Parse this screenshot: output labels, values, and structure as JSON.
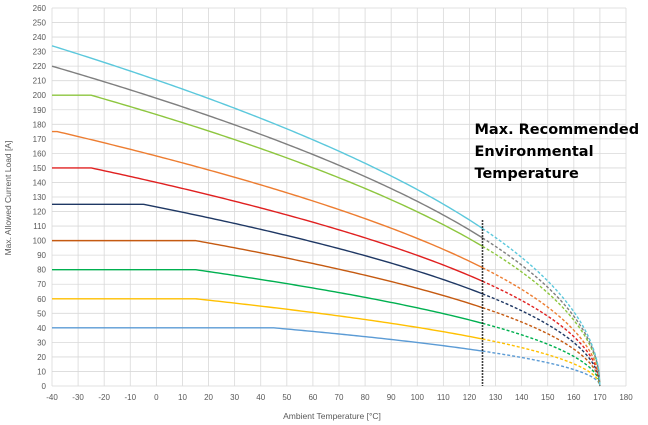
{
  "chart_data": {
    "type": "line",
    "title": "",
    "xlabel": "Ambient Temperature [°C]",
    "ylabel": "Max. Allowed Current Load [A]",
    "xlim": [
      -40,
      180
    ],
    "ylim": [
      0,
      260
    ],
    "x_ticks": [
      "-40",
      "-30",
      "-20",
      "-10",
      "0",
      "10",
      "20",
      "30",
      "40",
      "50",
      "60",
      "70",
      "80",
      "90",
      "100",
      "110",
      "120",
      "130",
      "140",
      "150",
      "160",
      "170",
      "180"
    ],
    "y_ticks": [
      "0",
      "10",
      "20",
      "30",
      "40",
      "50",
      "60",
      "70",
      "80",
      "90",
      "100",
      "110",
      "120",
      "130",
      "140",
      "150",
      "160",
      "170",
      "180",
      "190",
      "200",
      "210",
      "220",
      "230",
      "240",
      "250",
      "260"
    ],
    "grid": true,
    "legend": "none",
    "annotation": {
      "lines": [
        "Max. Recommended",
        "Environmental",
        "Temperature"
      ],
      "x": 125,
      "line_style": "dotted"
    },
    "series": [
      {
        "color": "#5B9BD5",
        "max": 40,
        "knee_x": 45,
        "solid_until_x": 125,
        "end_x": 170
      },
      {
        "color": "#FFC000",
        "max": 60,
        "knee_x": 15,
        "solid_until_x": 125,
        "end_x": 170
      },
      {
        "color": "#00B050",
        "max": 80,
        "knee_x": 15,
        "solid_until_x": 125,
        "end_x": 170
      },
      {
        "color": "#C55A11",
        "max": 100,
        "knee_x": 15,
        "solid_until_x": 125,
        "end_x": 170
      },
      {
        "color": "#1F3864",
        "max": 125,
        "knee_x": -5,
        "solid_until_x": 125,
        "end_x": 170
      },
      {
        "color": "#E02020",
        "max": 150,
        "knee_x": -25,
        "solid_until_x": 125,
        "end_x": 170
      },
      {
        "color": "#ED7D31",
        "max": 175,
        "knee_x": -38,
        "solid_until_x": 125,
        "end_x": 170
      },
      {
        "color": "#8DC63F",
        "max": 200,
        "knee_x": -25,
        "solid_until_x": 125,
        "end_x": 170
      },
      {
        "color": "#7F7F7F",
        "max": 220,
        "knee_x": -40,
        "solid_until_x": 125,
        "end_x": 170
      },
      {
        "color": "#5BC8DC",
        "max": 234,
        "knee_x": -40,
        "solid_until_x": 125,
        "end_x": 170
      }
    ]
  }
}
